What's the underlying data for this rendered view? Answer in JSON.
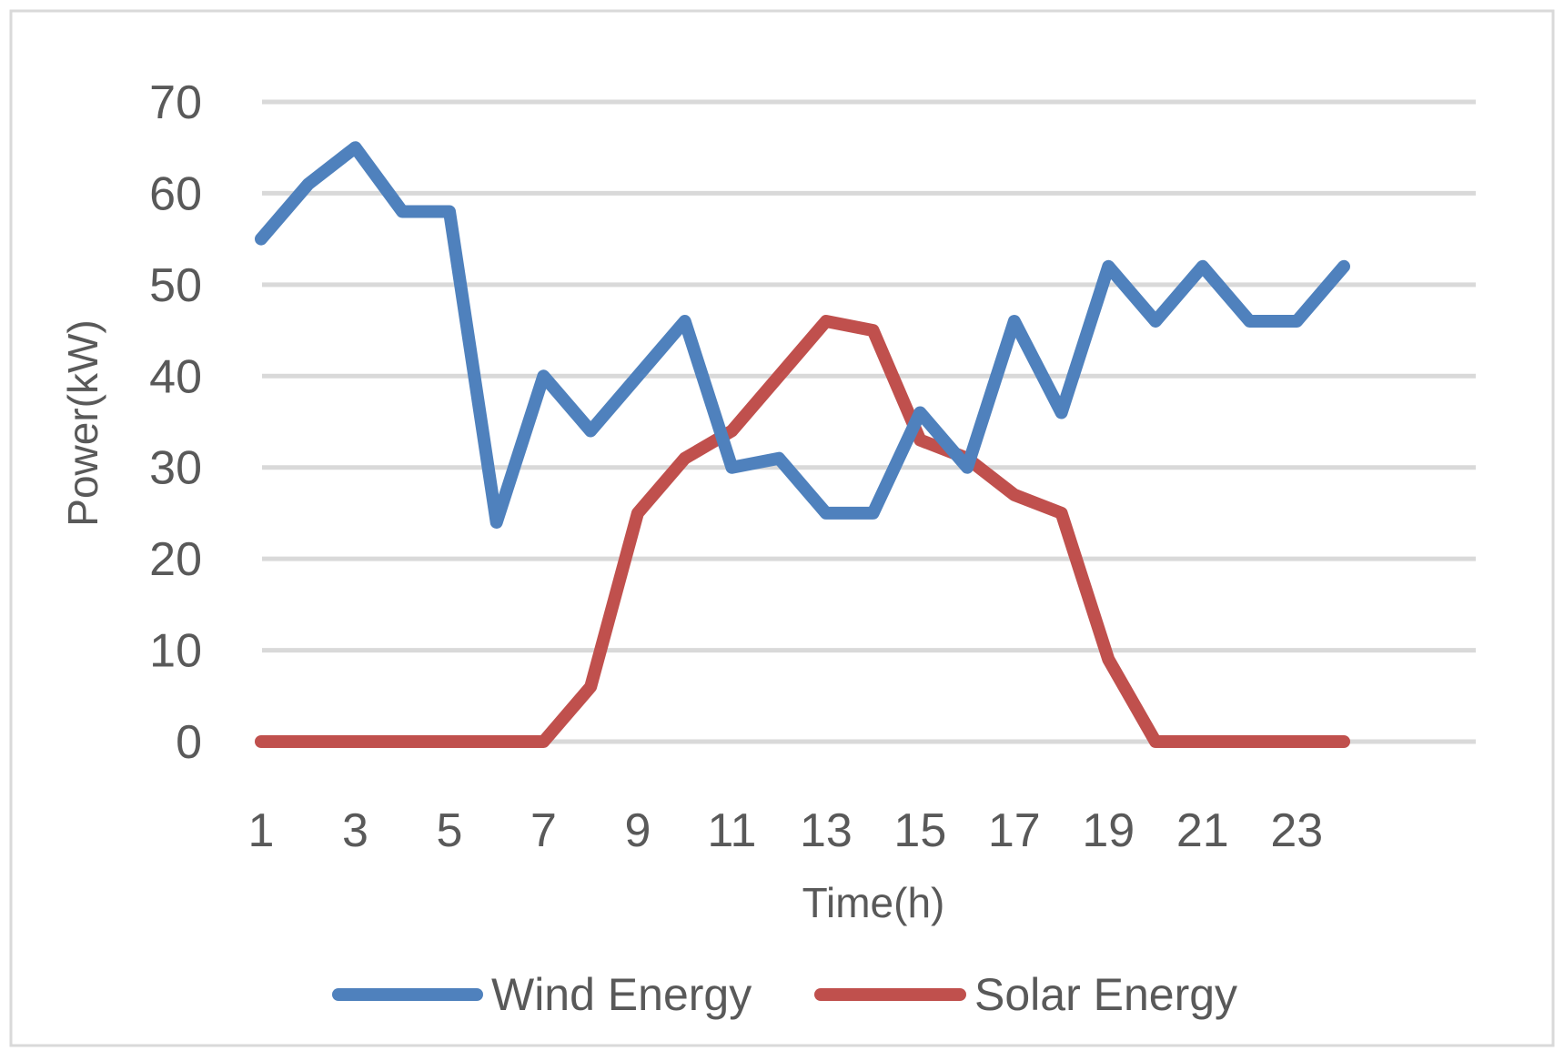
{
  "chart_data": {
    "type": "line",
    "title": "",
    "xlabel": "Time(h)",
    "ylabel": "Power(kW)",
    "ylim": [
      0,
      70
    ],
    "yticks": [
      0,
      10,
      20,
      30,
      40,
      50,
      60,
      70
    ],
    "x": [
      1,
      2,
      3,
      4,
      5,
      6,
      7,
      8,
      9,
      10,
      11,
      12,
      13,
      14,
      15,
      16,
      17,
      18,
      19,
      20,
      21,
      22,
      23,
      24
    ],
    "xtick_labels": [
      "1",
      "3",
      "5",
      "7",
      "9",
      "11",
      "13",
      "15",
      "17",
      "19",
      "21",
      "23"
    ],
    "grid": "horizontal",
    "legend_position": "bottom",
    "series": [
      {
        "name": "Wind Energy",
        "color": "#4f81bd",
        "values": [
          55,
          61,
          65,
          58,
          58,
          24,
          40,
          34,
          40,
          46,
          30,
          31,
          25,
          25,
          36,
          30,
          46,
          36,
          52,
          46,
          52,
          46,
          46,
          52
        ]
      },
      {
        "name": "Solar Energy",
        "color": "#c0504d",
        "values": [
          0,
          0,
          0,
          0,
          0,
          0,
          0,
          6,
          25,
          31,
          34,
          40,
          46,
          45,
          33,
          31,
          27,
          25,
          9,
          0,
          0,
          0,
          0,
          0
        ]
      }
    ]
  }
}
